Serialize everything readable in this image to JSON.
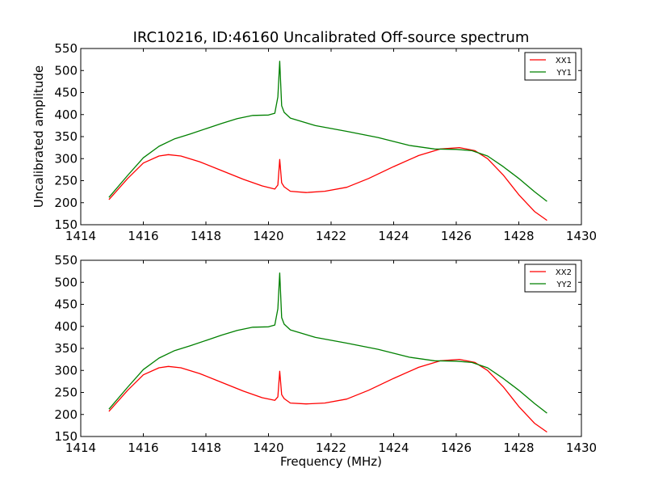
{
  "chart_data": [
    {
      "type": "line",
      "title": "IRC10216, ID:46160 Uncalibrated Off-source spectrum",
      "xlabel": "",
      "ylabel": "Uncalibrated amplitude",
      "xlim": [
        1414,
        1430
      ],
      "ylim": [
        150,
        550
      ],
      "xticks": [
        1414,
        1416,
        1418,
        1420,
        1422,
        1424,
        1426,
        1428,
        1430
      ],
      "yticks": [
        150,
        200,
        250,
        300,
        350,
        400,
        450,
        500,
        550
      ],
      "legend_position": "top-right",
      "grid": false,
      "series": [
        {
          "name": "XX1",
          "color": "#ff0000",
          "x": [
            1414.9,
            1415.5,
            1416.0,
            1416.5,
            1416.8,
            1417.2,
            1417.8,
            1418.5,
            1419.2,
            1419.8,
            1420.2,
            1420.3,
            1420.36,
            1420.42,
            1420.5,
            1420.7,
            1421.2,
            1421.8,
            1422.5,
            1423.2,
            1424.0,
            1424.8,
            1425.5,
            1426.1,
            1426.6,
            1427.0,
            1427.5,
            1428.0,
            1428.5,
            1428.9
          ],
          "y": [
            207,
            255,
            290,
            306,
            309,
            306,
            293,
            273,
            253,
            238,
            231,
            240,
            298,
            245,
            236,
            226,
            223,
            226,
            235,
            255,
            282,
            307,
            322,
            325,
            318,
            300,
            263,
            218,
            180,
            160
          ]
        },
        {
          "name": "YY1",
          "color": "#008000",
          "x": [
            1414.9,
            1415.5,
            1416.0,
            1416.5,
            1417.0,
            1417.5,
            1418.0,
            1418.5,
            1419.0,
            1419.5,
            1420.0,
            1420.2,
            1420.3,
            1420.36,
            1420.42,
            1420.5,
            1420.7,
            1421.5,
            1422.5,
            1423.5,
            1424.5,
            1425.3,
            1426.0,
            1426.5,
            1427.0,
            1427.5,
            1428.0,
            1428.5,
            1428.9
          ],
          "y": [
            212,
            262,
            302,
            328,
            345,
            356,
            368,
            380,
            391,
            398,
            399,
            403,
            440,
            521,
            420,
            405,
            392,
            375,
            362,
            348,
            330,
            322,
            321,
            318,
            306,
            282,
            255,
            225,
            203
          ]
        }
      ]
    },
    {
      "type": "line",
      "title": "",
      "xlabel": "Frequency (MHz)",
      "ylabel": "",
      "xlim": [
        1414,
        1430
      ],
      "ylim": [
        150,
        550
      ],
      "xticks": [
        1414,
        1416,
        1418,
        1420,
        1422,
        1424,
        1426,
        1428,
        1430
      ],
      "yticks": [
        150,
        200,
        250,
        300,
        350,
        400,
        450,
        500,
        550
      ],
      "legend_position": "top-right",
      "grid": false,
      "series": [
        {
          "name": "XX2",
          "color": "#ff0000",
          "x": [
            1414.9,
            1415.5,
            1416.0,
            1416.5,
            1416.8,
            1417.2,
            1417.8,
            1418.5,
            1419.2,
            1419.8,
            1420.2,
            1420.3,
            1420.36,
            1420.42,
            1420.5,
            1420.7,
            1421.2,
            1421.8,
            1422.5,
            1423.2,
            1424.0,
            1424.8,
            1425.5,
            1426.1,
            1426.6,
            1427.0,
            1427.5,
            1428.0,
            1428.5,
            1428.9
          ],
          "y": [
            207,
            255,
            290,
            306,
            309,
            306,
            293,
            273,
            253,
            238,
            232,
            240,
            298,
            245,
            236,
            226,
            224,
            226,
            235,
            255,
            282,
            307,
            322,
            325,
            318,
            300,
            263,
            218,
            180,
            160
          ]
        },
        {
          "name": "YY2",
          "color": "#008000",
          "x": [
            1414.9,
            1415.5,
            1416.0,
            1416.5,
            1417.0,
            1417.5,
            1418.0,
            1418.5,
            1419.0,
            1419.5,
            1420.0,
            1420.2,
            1420.3,
            1420.36,
            1420.42,
            1420.5,
            1420.7,
            1421.5,
            1422.5,
            1423.5,
            1424.5,
            1425.3,
            1426.0,
            1426.5,
            1427.0,
            1427.5,
            1428.0,
            1428.5,
            1428.9
          ],
          "y": [
            212,
            262,
            302,
            328,
            345,
            356,
            368,
            380,
            391,
            398,
            399,
            403,
            440,
            521,
            420,
            405,
            392,
            375,
            362,
            348,
            330,
            322,
            321,
            318,
            306,
            282,
            255,
            225,
            203
          ]
        }
      ]
    }
  ]
}
